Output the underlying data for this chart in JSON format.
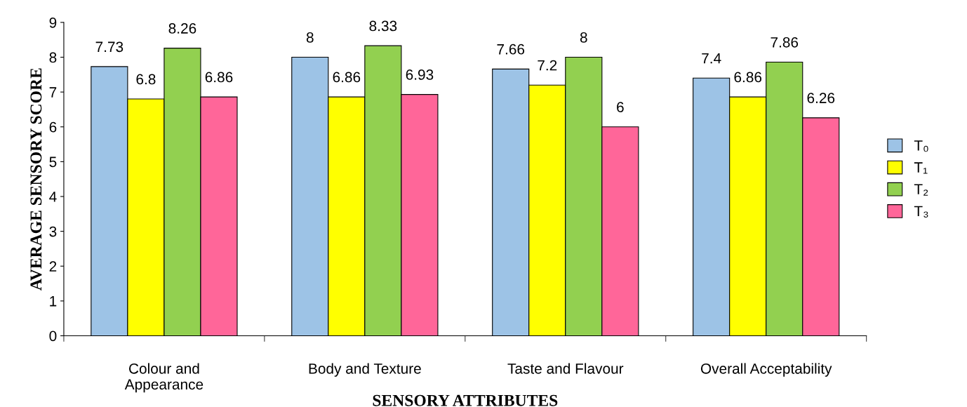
{
  "chart_data": {
    "type": "bar",
    "xlabel": "SENSORY ATTRIBUTES",
    "ylabel": "AVERAGE SENSORY SCORE",
    "categories": [
      "Colour and\nAppearance",
      "Body and Texture",
      "Taste and Flavour",
      "Overall Acceptability"
    ],
    "series": [
      {
        "name": "T₀",
        "color": "#9dc3e6",
        "values": [
          7.73,
          8,
          7.66,
          7.4
        ]
      },
      {
        "name": "T₁",
        "color": "#ffff00",
        "values": [
          6.8,
          6.86,
          7.2,
          6.86
        ]
      },
      {
        "name": "T₂",
        "color": "#92d050",
        "values": [
          8.26,
          8.33,
          8,
          7.86
        ]
      },
      {
        "name": "T₃",
        "color": "#ff6699",
        "values": [
          6.86,
          6.93,
          6,
          6.26
        ]
      }
    ],
    "ylim": [
      0,
      9
    ],
    "yticks": [
      0,
      1,
      2,
      3,
      4,
      5,
      6,
      7,
      8,
      9
    ],
    "data_labels": true,
    "grid": false,
    "legend": "right"
  }
}
